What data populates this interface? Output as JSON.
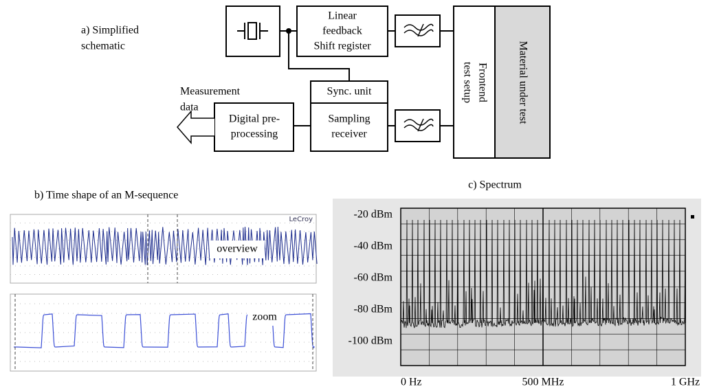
{
  "schematic": {
    "caption": [
      "a) Simplified",
      "schematic"
    ],
    "lfsr": [
      "Linear",
      "feedback",
      "Shift register"
    ],
    "sync": "Sync. unit",
    "sampling": [
      "Sampling",
      "receiver"
    ],
    "digital": [
      "Digital pre-",
      "processing"
    ],
    "frontend": [
      "Frontend",
      "test setup"
    ],
    "material": "Material under test",
    "output": [
      "Measurement",
      "data"
    ]
  },
  "scope": {
    "caption": "b) Time shape of an M-sequence",
    "brand": "LeCroy",
    "overview": "overview",
    "zoom": "zoom"
  },
  "spectrum": {
    "caption": "c) Spectrum",
    "yticks": [
      "-20 dBm",
      "-40 dBm",
      "-60 dBm",
      "-80 dBm",
      "-100 dBm"
    ],
    "xticks": [
      "0 Hz",
      "500 MHz",
      "1 GHz"
    ]
  }
}
